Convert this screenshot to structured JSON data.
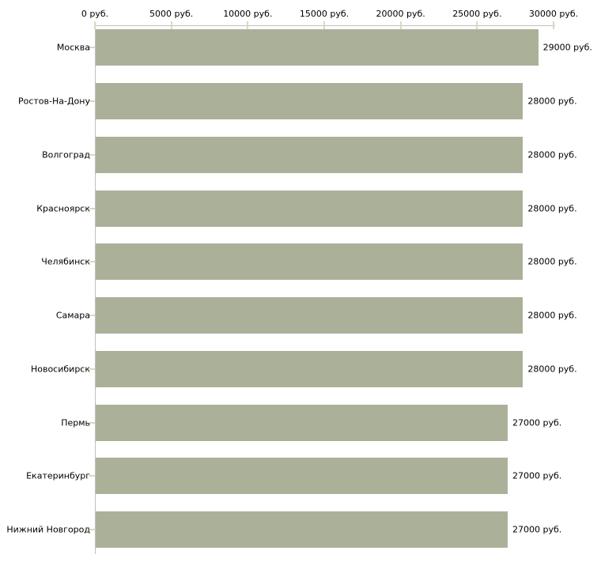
{
  "chart_data": {
    "type": "bar",
    "orientation": "horizontal",
    "title": "",
    "xlabel": "",
    "ylabel": "",
    "grid": false,
    "legend": false,
    "categories": [
      "Москва",
      "Ростов-На-Дону",
      "Волгоград",
      "Красноярск",
      "Челябинск",
      "Самара",
      "Новосибирск",
      "Пермь",
      "Екатеринбург",
      "Нижний Новгород"
    ],
    "values": [
      29000,
      28000,
      28000,
      28000,
      28000,
      28000,
      28000,
      27000,
      27000,
      27000
    ],
    "value_labels": [
      "29000 руб.",
      "28000 руб.",
      "28000 руб.",
      "28000 руб.",
      "28000 руб.",
      "28000 руб.",
      "28000 руб.",
      "27000 руб.",
      "27000 руб.",
      "27000 руб."
    ],
    "unit": "руб.",
    "x_axis": {
      "position": "top",
      "min": 0,
      "max": 30000,
      "tick_values": [
        0,
        5000,
        10000,
        15000,
        20000,
        25000,
        30000
      ],
      "tick_labels": [
        "0 руб.",
        "5000 руб.",
        "10000 руб.",
        "15000 руб.",
        "20000 руб.",
        "25000 руб.",
        "30000 руб."
      ]
    },
    "colors": {
      "bar": "#abb199",
      "axis_line": "#bfbfbf",
      "tick": "#d9d9c1",
      "text": "#000000",
      "background": "#ffffff"
    }
  }
}
